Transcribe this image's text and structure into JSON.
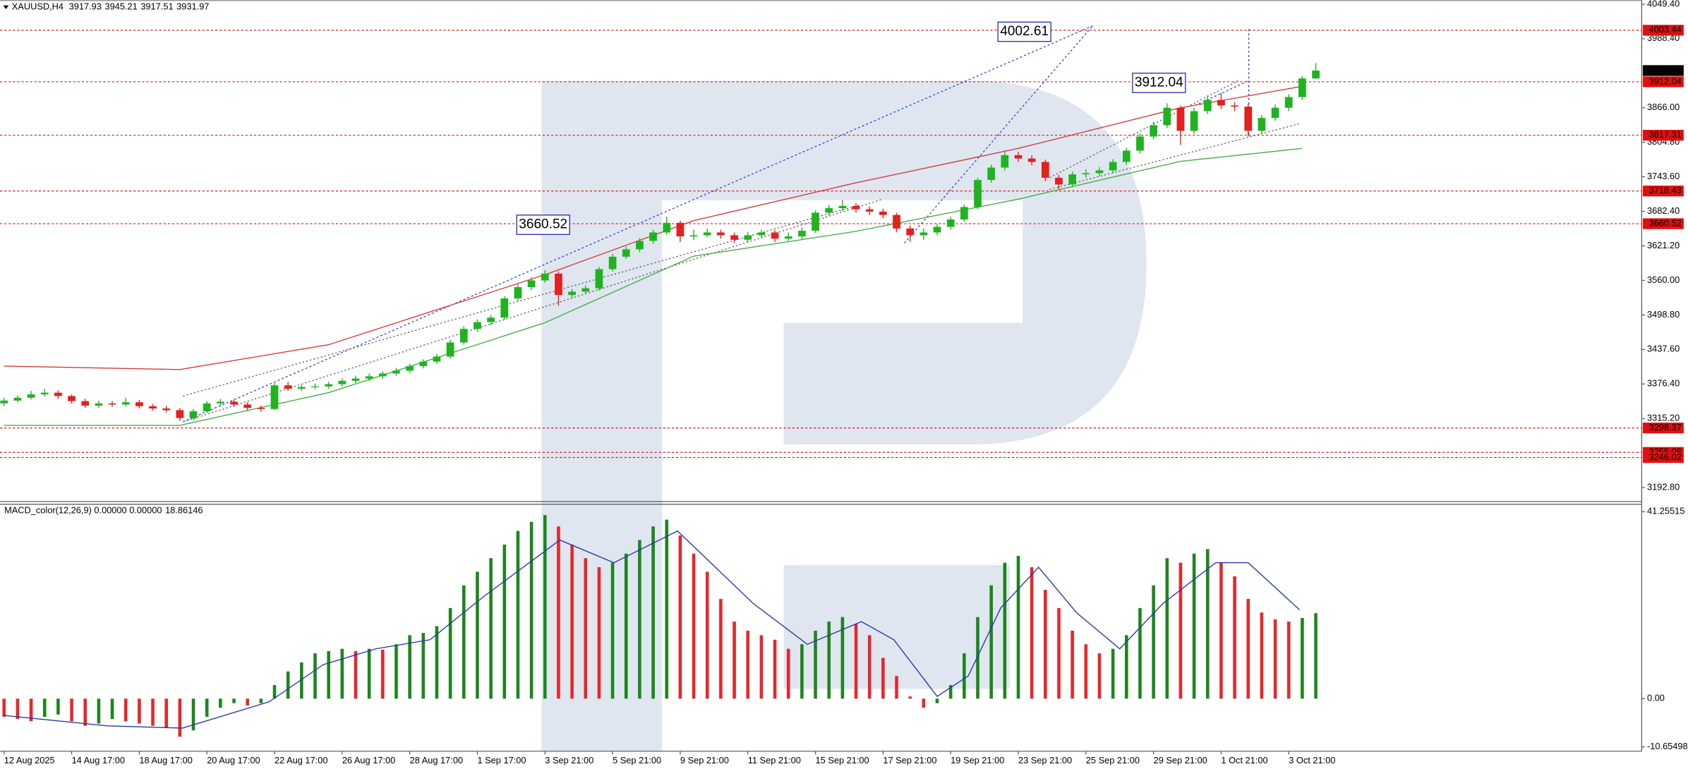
{
  "chart_data": [
    {
      "type": "candlestick",
      "title": "XAUUSD,H4",
      "open": [
        3342,
        3347,
        3352,
        3358,
        3361,
        3355,
        3346,
        3338,
        3342,
        3340,
        3344,
        3337,
        3333,
        3330,
        3316,
        3328,
        3342,
        3345,
        3340,
        3334,
        3332,
        3374,
        3368,
        3371,
        3372,
        3376,
        3382,
        3386,
        3390,
        3395,
        3400,
        3408,
        3416,
        3425,
        3450,
        3474,
        3486,
        3494,
        3528,
        3548,
        3560,
        3572,
        3534,
        3540,
        3546,
        3580,
        3602,
        3615,
        3630,
        3645,
        3662,
        3638,
        3640,
        3645,
        3640,
        3632,
        3640,
        3645,
        3634,
        3638,
        3648,
        3680,
        3688,
        3692,
        3686,
        3682,
        3676,
        3652,
        3640,
        3645,
        3655,
        3668,
        3690,
        3738,
        3760,
        3782,
        3776,
        3770,
        3742,
        3730,
        3748,
        3750,
        3755,
        3770,
        3790,
        3815,
        3835,
        3866,
        3825,
        3860,
        3880,
        3870,
        3868,
        3825,
        3848,
        3866,
        3885,
        3917.93
      ],
      "high": [
        3352,
        3356,
        3364,
        3368,
        3365,
        3358,
        3350,
        3347,
        3346,
        3352,
        3348,
        3341,
        3338,
        3334,
        3332,
        3346,
        3350,
        3349,
        3344,
        3338,
        3378,
        3380,
        3375,
        3377,
        3380,
        3386,
        3391,
        3395,
        3399,
        3405,
        3412,
        3420,
        3430,
        3455,
        3479,
        3491,
        3499,
        3532,
        3553,
        3566,
        3578,
        3576,
        3545,
        3551,
        3584,
        3607,
        3620,
        3635,
        3650,
        3673,
        3666,
        3650,
        3652,
        3650,
        3645,
        3646,
        3650,
        3649,
        3645,
        3654,
        3684,
        3694,
        3703,
        3697,
        3691,
        3687,
        3680,
        3657,
        3652,
        3660,
        3673,
        3695,
        3742,
        3765,
        3790,
        3788,
        3782,
        3774,
        3747,
        3753,
        3757,
        3761,
        3775,
        3795,
        3820,
        3841,
        3874,
        3870,
        3866,
        3888,
        3892,
        3876,
        3873,
        3853,
        3872,
        3890,
        3922,
        3945.21
      ],
      "low": [
        3337,
        3344,
        3349,
        3354,
        3350,
        3342,
        3334,
        3334,
        3336,
        3337,
        3333,
        3329,
        3326,
        3311,
        3312,
        3325,
        3338,
        3336,
        3330,
        3327,
        3330,
        3364,
        3364,
        3367,
        3368,
        3372,
        3378,
        3382,
        3386,
        3391,
        3396,
        3404,
        3412,
        3421,
        3446,
        3469,
        3480,
        3490,
        3524,
        3543,
        3556,
        3515,
        3528,
        3536,
        3542,
        3576,
        3598,
        3610,
        3625,
        3641,
        3628,
        3632,
        3636,
        3634,
        3626,
        3627,
        3635,
        3628,
        3630,
        3633,
        3644,
        3675,
        3683,
        3680,
        3676,
        3670,
        3645,
        3628,
        3632,
        3640,
        3650,
        3664,
        3686,
        3733,
        3755,
        3770,
        3764,
        3736,
        3722,
        3725,
        3742,
        3745,
        3750,
        3765,
        3785,
        3810,
        3830,
        3800,
        3820,
        3855,
        3864,
        3860,
        3815,
        3820,
        3843,
        3860,
        3880,
        3917.51
      ],
      "close": [
        3347,
        3352,
        3358,
        3361,
        3355,
        3346,
        3338,
        3342,
        3340,
        3344,
        3337,
        3333,
        3330,
        3316,
        3328,
        3342,
        3345,
        3340,
        3334,
        3332,
        3374,
        3368,
        3371,
        3372,
        3376,
        3382,
        3386,
        3390,
        3395,
        3400,
        3408,
        3416,
        3425,
        3450,
        3474,
        3486,
        3494,
        3528,
        3548,
        3560,
        3572,
        3534,
        3540,
        3546,
        3580,
        3602,
        3615,
        3630,
        3645,
        3662,
        3638,
        3640,
        3645,
        3640,
        3632,
        3640,
        3645,
        3634,
        3638,
        3648,
        3680,
        3688,
        3692,
        3686,
        3682,
        3676,
        3652,
        3640,
        3645,
        3655,
        3668,
        3690,
        3738,
        3760,
        3782,
        3776,
        3770,
        3742,
        3730,
        3748,
        3750,
        3755,
        3770,
        3790,
        3815,
        3835,
        3866,
        3825,
        3860,
        3880,
        3870,
        3868,
        3825,
        3848,
        3866,
        3885,
        3917.93,
        3931.97
      ],
      "up_color": "#1fb41f",
      "down_color": "#e3211f",
      "lines": [
        {
          "color": "#d23c3c",
          "x": [
            0,
            13,
            24,
            40,
            51,
            63,
            75,
            87,
            96
          ],
          "values": [
            3408,
            3402,
            3446,
            3570,
            3666,
            3733,
            3794,
            3866,
            3904
          ]
        },
        {
          "color": "#45ad45",
          "x": [
            0,
            13,
            24,
            40,
            51,
            63,
            75,
            87,
            96
          ],
          "values": [
            3303,
            3303,
            3361,
            3485,
            3603,
            3647,
            3704,
            3771,
            3794
          ]
        }
      ],
      "levels": [
        4003.44,
        3912.04,
        3817.31,
        3718.43,
        3660.52,
        3298.37,
        3255.08,
        3246.02
      ],
      "level_color": "#e01010",
      "price_color": "#000000",
      "annotations": [
        4002.61,
        3912.04,
        3660.52
      ],
      "annotation_color": "#1a1aa8",
      "ylim": [
        3168,
        4057
      ],
      "yticks": [
        {
          "value": 4049.4,
          "label": "4049.40"
        },
        {
          "value": 3988.4,
          "label": "3988.40"
        },
        {
          "value": 3866,
          "label": "3866.00"
        },
        {
          "value": 3804.8,
          "label": "3804.80"
        },
        {
          "value": 3743.6,
          "label": "3743.60"
        },
        {
          "value": 3682.4,
          "label": "3682.40"
        },
        {
          "value": 3621.2,
          "label": "3621.20"
        },
        {
          "value": 3560,
          "label": "3560.00"
        },
        {
          "value": 3498.8,
          "label": "3498.80"
        },
        {
          "value": 3437.6,
          "label": "3437.60"
        },
        {
          "value": 3376.4,
          "label": "3376.40"
        },
        {
          "value": 3315.2,
          "label": "3315.20"
        },
        {
          "value": 3192.8,
          "label": "3192.80"
        }
      ]
    },
    {
      "type": "bar",
      "title": "MACD_color(12,26,9) 0.00000 0.00000",
      "values": [
        -4,
        -4.5,
        -5,
        -4,
        -3.5,
        -5,
        -6,
        -5.5,
        -4.5,
        -5,
        -5.5,
        -6,
        -6.5,
        -8.4,
        -7,
        -4,
        -2,
        -1,
        -1.5,
        -1,
        3,
        6,
        8,
        10,
        10.5,
        11,
        10.5,
        11,
        10.8,
        12,
        14,
        14.5,
        16,
        20,
        25,
        28,
        31,
        34,
        37,
        39,
        40.5,
        38,
        34,
        31,
        29,
        30,
        32,
        35,
        38,
        39.5,
        36,
        32,
        28,
        22,
        17,
        15,
        14,
        13,
        11,
        12,
        15,
        17,
        18,
        16.5,
        14,
        9,
        5,
        0.5,
        -2,
        -1,
        3,
        10,
        18,
        25,
        30,
        31.5,
        29,
        24,
        20,
        15,
        12,
        10,
        11,
        14,
        20,
        25,
        31,
        30,
        32,
        33,
        30,
        27,
        22,
        19,
        17.5,
        17,
        17.8,
        18.86146
      ],
      "up_color": "#1c861c",
      "down_color": "#e8262b",
      "signal": {
        "color": "#2a36a8",
        "x": [
          0,
          7.6,
          13.2,
          19.6,
          23.6,
          27.5,
          31.5,
          35.5,
          41.1,
          45.1,
          49.8,
          55.4,
          59.4,
          63.4,
          65.8,
          69,
          71.3,
          73.7,
          76.5,
          79.3,
          82.5,
          85.7,
          89.6,
          92,
          95.8
        ],
        "values": [
          -3.7,
          -6,
          -6.5,
          -0.7,
          7.5,
          11,
          13,
          22.6,
          35,
          30,
          37,
          21,
          12,
          17,
          13,
          0.5,
          5,
          20,
          29,
          19,
          11,
          21,
          30,
          30,
          19.6
        ]
      },
      "ylim": [
        -11.6,
        42.9
      ],
      "yticks": [
        41.25515,
        {
          "value": 0,
          "label": "0.00"
        },
        -10.65498
      ],
      "xlim": [
        -0.3,
        121.1
      ],
      "xticks": [
        {
          "value": 0,
          "label": "12 Aug 2025"
        },
        {
          "value": 5,
          "label": "14 Aug 17:00"
        },
        {
          "value": 10,
          "label": "18 Aug 17:00"
        },
        {
          "value": 15,
          "label": "20 Aug 17:00"
        },
        {
          "value": 20,
          "label": "22 Aug 17:00"
        },
        {
          "value": 25,
          "label": "26 Aug 17:00"
        },
        {
          "value": 30,
          "label": "28 Aug 17:00"
        },
        {
          "value": 35,
          "label": "1 Sep 17:00"
        },
        {
          "value": 40,
          "label": "3 Sep 21:00"
        },
        {
          "value": 45,
          "label": "5 Sep 21:00"
        },
        {
          "value": 50,
          "label": "9 Sep 21:00"
        },
        {
          "value": 55,
          "label": "11 Sep 21:00"
        },
        {
          "value": 60,
          "label": "15 Sep 21:00"
        },
        {
          "value": 65,
          "label": "17 Sep 21:00"
        },
        {
          "value": 70,
          "label": "19 Sep 21:00"
        },
        {
          "value": 75,
          "label": "23 Sep 21:00"
        },
        {
          "value": 80,
          "label": "25 Sep 21:00"
        },
        {
          "value": 85,
          "label": "29 Sep 21:00"
        },
        {
          "value": 90,
          "label": "1 Oct 21:00"
        },
        {
          "value": 95,
          "label": "3 Oct 21:00"
        }
      ]
    }
  ]
}
